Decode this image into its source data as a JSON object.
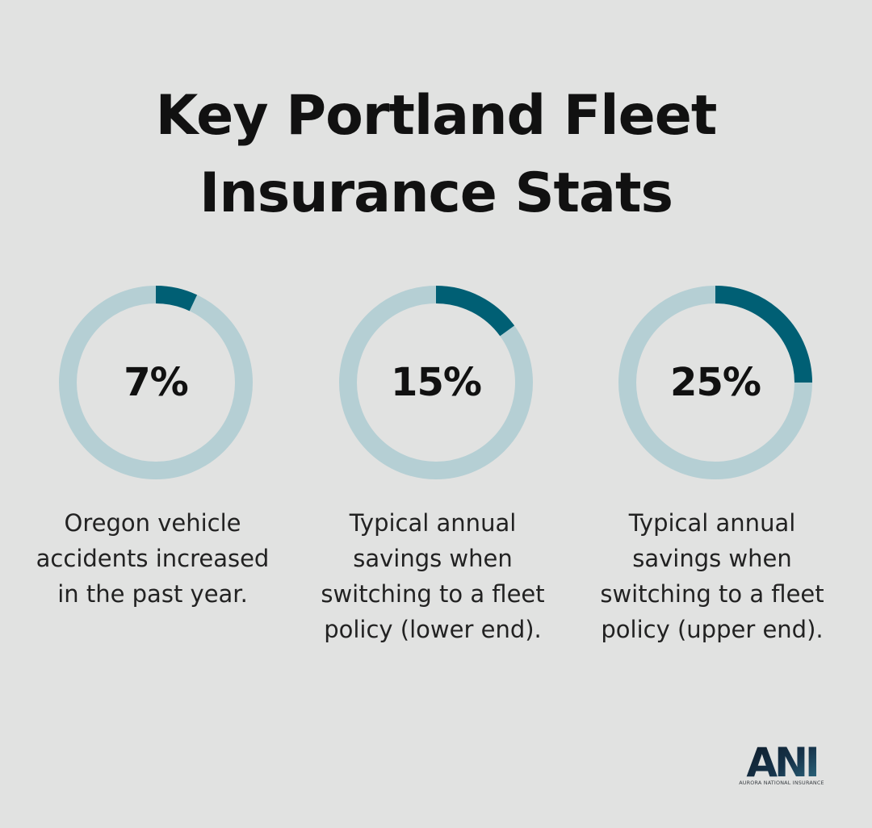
{
  "title_lines": [
    "Key Portland Fleet",
    "Insurance Stats"
  ],
  "colors": {
    "background": "#e1e2e1",
    "ring_track": "#b5cfd4",
    "ring_fill": "#005f74",
    "text": "#111111"
  },
  "chart_data": [
    {
      "type": "pie",
      "value": 7,
      "max": 100,
      "label": "7%",
      "caption": "Oregon vehicle accidents increased in the past year."
    },
    {
      "type": "pie",
      "value": 15,
      "max": 100,
      "label": "15%",
      "caption": "Typical annual savings when switching to a fleet policy (lower end)."
    },
    {
      "type": "pie",
      "value": 25,
      "max": 100,
      "label": "25%",
      "caption": "Typical annual savings when switching to a fleet policy (upper end)."
    }
  ],
  "logo": {
    "mark": "ANI",
    "tagline": "AURORA NATIONAL INSURANCE"
  }
}
